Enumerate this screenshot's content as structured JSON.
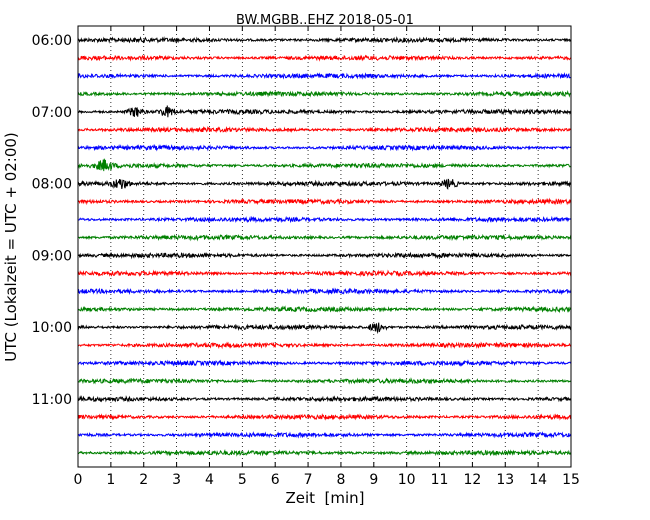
{
  "chart_data": {
    "type": "line",
    "title": "BW.MGBB..EHZ 2018-05-01",
    "xlabel": "Zeit  [min]",
    "ylabel": "UTC (Lokalzeit = UTC + 02:00)",
    "xlim": [
      0,
      15
    ],
    "x_ticks": [
      "0",
      "1",
      "2",
      "3",
      "4",
      "5",
      "6",
      "7",
      "8",
      "9",
      "10",
      "11",
      "12",
      "13",
      "14",
      "15"
    ],
    "grid": "vertical dotted at each minute",
    "row_interval_min": 15,
    "y_tick_rows": [
      {
        "label": "06:00",
        "row": 0
      },
      {
        "label": "07:00",
        "row": 4
      },
      {
        "label": "08:00",
        "row": 8
      },
      {
        "label": "09:00",
        "row": 12
      },
      {
        "label": "10:00",
        "row": 16
      },
      {
        "label": "11:00",
        "row": 20
      }
    ],
    "series_colors": [
      "#000000",
      "#ff0000",
      "#0000ff",
      "#008000"
    ],
    "rows": [
      {
        "start": "06:00",
        "color": "#000000"
      },
      {
        "start": "06:15",
        "color": "#ff0000"
      },
      {
        "start": "06:30",
        "color": "#0000ff"
      },
      {
        "start": "06:45",
        "color": "#008000"
      },
      {
        "start": "07:00",
        "color": "#000000",
        "events_min": [
          1.75,
          2.7
        ]
      },
      {
        "start": "07:15",
        "color": "#ff0000"
      },
      {
        "start": "07:30",
        "color": "#0000ff"
      },
      {
        "start": "07:45",
        "color": "#008000",
        "events_min": [
          0.8
        ]
      },
      {
        "start": "08:00",
        "color": "#000000",
        "events_min": [
          1.3,
          11.3
        ]
      },
      {
        "start": "08:15",
        "color": "#ff0000"
      },
      {
        "start": "08:30",
        "color": "#0000ff"
      },
      {
        "start": "08:45",
        "color": "#008000"
      },
      {
        "start": "09:00",
        "color": "#000000"
      },
      {
        "start": "09:15",
        "color": "#ff0000"
      },
      {
        "start": "09:30",
        "color": "#0000ff"
      },
      {
        "start": "09:45",
        "color": "#008000"
      },
      {
        "start": "10:00",
        "color": "#000000",
        "events_min": [
          9.1
        ]
      },
      {
        "start": "10:15",
        "color": "#ff0000"
      },
      {
        "start": "10:30",
        "color": "#0000ff"
      },
      {
        "start": "10:45",
        "color": "#008000"
      },
      {
        "start": "11:00",
        "color": "#000000"
      },
      {
        "start": "11:15",
        "color": "#ff0000"
      },
      {
        "start": "11:30",
        "color": "#0000ff"
      },
      {
        "start": "11:45",
        "color": "#008000"
      }
    ]
  }
}
